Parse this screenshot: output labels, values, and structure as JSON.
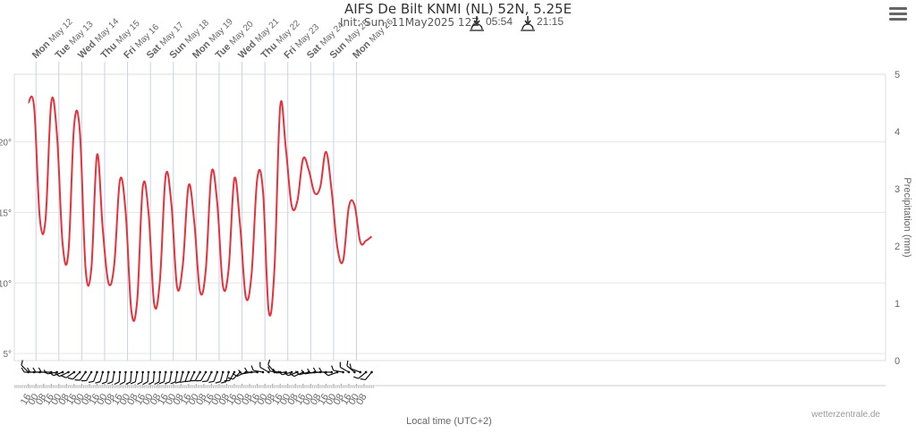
{
  "header": {
    "title": "AIFS De Bilt KNMI (NL) 52N, 5.25E",
    "subtitle": "Init: Sun, 11May2025 12Z",
    "sunrise": "05:54",
    "sunset": "21:15",
    "menu_icon": "hamburger-menu-icon"
  },
  "credits": "wetterzentrale.de",
  "colors": {
    "temperature_line": "#e8303a",
    "grid": "#e6e6e6",
    "axis_text": "#666666",
    "wind_barb": "#111111"
  },
  "chart_data": {
    "type": "line",
    "title": "AIFS De Bilt KNMI (NL) 52N, 5.25E",
    "xlabel": "Local time (UTC+2)",
    "ylabel": "",
    "y2label": "Precipitation (mm)",
    "ylim": [
      4.5,
      24.8
    ],
    "y2lim": [
      0,
      5
    ],
    "y_ticks": [
      "5°",
      "10°",
      "15°",
      "20°"
    ],
    "y2_ticks": [
      "0",
      "1",
      "2",
      "3",
      "4",
      "5"
    ],
    "grid": true,
    "day_labels": [
      {
        "dow": "Mon",
        "date": "May 12"
      },
      {
        "dow": "Tue",
        "date": "May 13"
      },
      {
        "dow": "Wed",
        "date": "May 14"
      },
      {
        "dow": "Thu",
        "date": "May 15"
      },
      {
        "dow": "Fri",
        "date": "May 16"
      },
      {
        "dow": "Sat",
        "date": "May 17"
      },
      {
        "dow": "Sun",
        "date": "May 18"
      },
      {
        "dow": "Mon",
        "date": "May 19"
      },
      {
        "dow": "Tue",
        "date": "May 20"
      },
      {
        "dow": "Wed",
        "date": "May 21"
      },
      {
        "dow": "Thu",
        "date": "May 22"
      },
      {
        "dow": "Fri",
        "date": "May 23"
      },
      {
        "dow": "Sat",
        "date": "May 24"
      },
      {
        "dow": "Sun",
        "date": "May 25"
      },
      {
        "dow": "Mon",
        "date": "May 26"
      }
    ],
    "x_tick_labels": [
      "16",
      "00",
      "08",
      "16",
      "00",
      "08",
      "16",
      "00",
      "08",
      "16",
      "00",
      "08",
      "16",
      "00",
      "08",
      "16",
      "00",
      "08",
      "16",
      "00",
      "08",
      "16",
      "00",
      "08",
      "16",
      "00",
      "08",
      "16",
      "00",
      "08",
      "16",
      "00",
      "08",
      "16",
      "00",
      "08",
      "16",
      "00",
      "08",
      "16",
      "00",
      "08",
      "16",
      "00",
      "08"
    ],
    "series": [
      {
        "name": "Temperature",
        "x_hours": [
          0,
          6,
          12,
          18,
          24,
          30,
          36,
          42,
          48,
          54,
          60,
          66,
          72,
          78,
          84,
          90,
          96,
          102,
          108,
          114,
          120,
          126,
          132,
          138,
          144,
          150,
          156,
          162,
          168,
          174,
          180,
          186,
          192,
          198,
          204,
          210,
          216,
          222,
          228,
          234,
          240,
          246,
          252,
          258,
          264,
          270,
          276,
          282,
          288,
          294,
          300,
          306,
          312,
          318,
          324,
          330,
          336,
          342,
          348,
          354,
          360
        ],
        "values": [
          22.8,
          22.5,
          14.6,
          14.5,
          22.8,
          20.5,
          12.7,
          12.2,
          21.2,
          20.7,
          11.0,
          11.0,
          19.1,
          13.8,
          10.0,
          11.3,
          17.3,
          15.0,
          8.0,
          8.7,
          16.8,
          15.0,
          8.5,
          10.2,
          17.6,
          15.6,
          9.7,
          11.3,
          16.9,
          14.3,
          9.4,
          10.9,
          17.8,
          15.7,
          9.8,
          11.0,
          17.4,
          14.1,
          9.0,
          10.6,
          17.4,
          16.5,
          8.0,
          11.0,
          22.5,
          19.5,
          15.5,
          15.8,
          18.8,
          18.0,
          16.4,
          16.8,
          19.3,
          16.5,
          12.5,
          11.6,
          15.4,
          15.5,
          12.9,
          13.0,
          13.3
        ]
      }
    ],
    "wind_barbs": {
      "x_hours": [
        0,
        6,
        12,
        18,
        24,
        30,
        36,
        42,
        48,
        54,
        60,
        66,
        72,
        78,
        84,
        90,
        96,
        102,
        108,
        114,
        120,
        126,
        132,
        138,
        144,
        150,
        156,
        162,
        168,
        174,
        180,
        186,
        192,
        198,
        204,
        210,
        216,
        222,
        228,
        234,
        240,
        246,
        252,
        258,
        264,
        270,
        276,
        282,
        288,
        294,
        300,
        306,
        312,
        318,
        324,
        330,
        336,
        342,
        348,
        354,
        360
      ],
      "direction_deg": [
        315,
        270,
        270,
        270,
        270,
        260,
        250,
        245,
        235,
        225,
        215,
        210,
        200,
        195,
        190,
        190,
        185,
        185,
        185,
        190,
        185,
        185,
        185,
        185,
        190,
        190,
        190,
        195,
        200,
        205,
        210,
        210,
        205,
        200,
        195,
        195,
        210,
        225,
        245,
        260,
        270,
        280,
        300,
        320,
        275,
        265,
        255,
        250,
        245,
        255,
        260,
        265,
        270,
        270,
        250,
        280,
        300,
        310,
        290,
        230,
        220
      ]
    }
  }
}
